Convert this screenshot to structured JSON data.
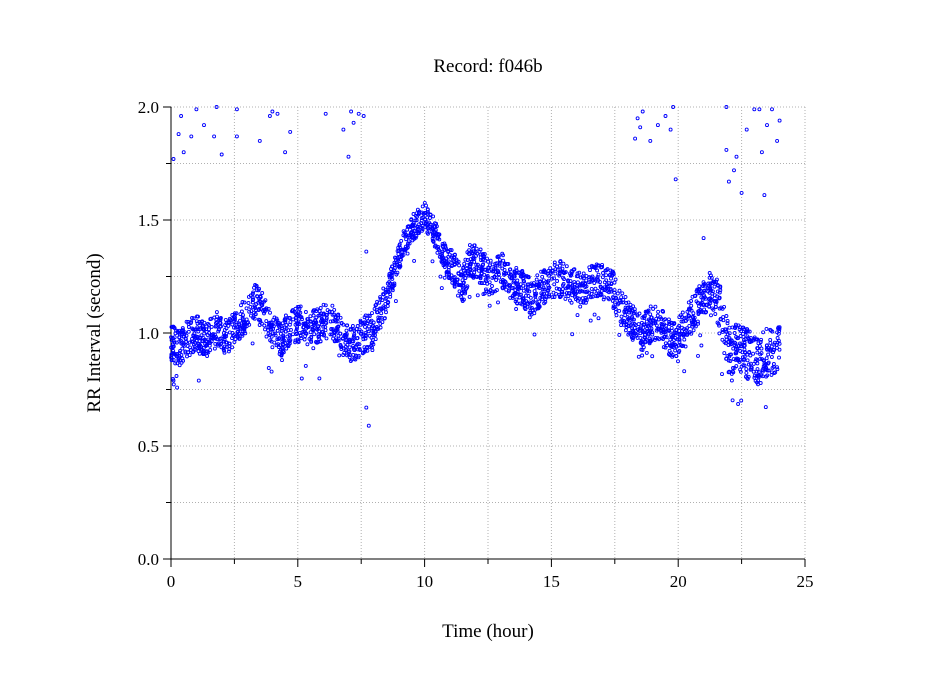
{
  "chart_data": {
    "type": "scatter",
    "title": "Record:  f046b",
    "xlabel": "Time (hour)",
    "ylabel": "RR Interval (second)",
    "xlim": [
      0,
      25
    ],
    "ylim": [
      0.0,
      2.0
    ],
    "x_ticks": [
      "0",
      "5",
      "10",
      "15",
      "20",
      "25"
    ],
    "y_ticks": [
      "0.0",
      "0.5",
      "1.0",
      "1.5",
      "2.0"
    ],
    "grid": true,
    "legend": "none",
    "marker": "open-circle",
    "color": "#0000ff",
    "trend": [
      [
        0.0,
        0.96
      ],
      [
        0.3,
        0.93
      ],
      [
        0.6,
        0.97
      ],
      [
        1.0,
        1.0
      ],
      [
        1.4,
        0.96
      ],
      [
        1.8,
        1.02
      ],
      [
        2.2,
        0.98
      ],
      [
        2.6,
        1.03
      ],
      [
        3.0,
        1.08
      ],
      [
        3.3,
        1.14
      ],
      [
        3.6,
        1.1
      ],
      [
        3.9,
        1.02
      ],
      [
        4.3,
        0.97
      ],
      [
        4.7,
        1.03
      ],
      [
        5.1,
        1.04
      ],
      [
        5.5,
        1.02
      ],
      [
        5.9,
        1.04
      ],
      [
        6.3,
        1.06
      ],
      [
        6.7,
        0.99
      ],
      [
        7.0,
        0.95
      ],
      [
        7.3,
        0.96
      ],
      [
        7.7,
        1.0
      ],
      [
        8.0,
        1.03
      ],
      [
        8.3,
        1.1
      ],
      [
        8.6,
        1.2
      ],
      [
        8.9,
        1.3
      ],
      [
        9.2,
        1.4
      ],
      [
        9.5,
        1.46
      ],
      [
        9.8,
        1.5
      ],
      [
        10.0,
        1.52
      ],
      [
        10.3,
        1.47
      ],
      [
        10.6,
        1.38
      ],
      [
        10.9,
        1.31
      ],
      [
        11.2,
        1.27
      ],
      [
        11.5,
        1.2
      ],
      [
        11.8,
        1.33
      ],
      [
        12.2,
        1.3
      ],
      [
        12.6,
        1.24
      ],
      [
        13.0,
        1.28
      ],
      [
        13.4,
        1.22
      ],
      [
        13.8,
        1.2
      ],
      [
        14.2,
        1.16
      ],
      [
        14.6,
        1.2
      ],
      [
        15.0,
        1.23
      ],
      [
        15.4,
        1.24
      ],
      [
        15.8,
        1.21
      ],
      [
        16.2,
        1.19
      ],
      [
        16.6,
        1.22
      ],
      [
        17.0,
        1.23
      ],
      [
        17.4,
        1.2
      ],
      [
        17.8,
        1.1
      ],
      [
        18.2,
        1.05
      ],
      [
        18.6,
        1.0
      ],
      [
        19.0,
        1.05
      ],
      [
        19.4,
        1.02
      ],
      [
        19.8,
        0.96
      ],
      [
        20.1,
        1.0
      ],
      [
        20.5,
        1.07
      ],
      [
        20.9,
        1.14
      ],
      [
        21.3,
        1.2
      ],
      [
        21.7,
        1.1
      ],
      [
        22.0,
        0.92
      ],
      [
        22.4,
        0.94
      ],
      [
        22.8,
        0.9
      ],
      [
        23.2,
        0.88
      ],
      [
        23.6,
        0.92
      ],
      [
        24.0,
        0.94
      ]
    ],
    "outliers": [
      [
        0.1,
        1.77
      ],
      [
        0.3,
        1.88
      ],
      [
        0.4,
        1.96
      ],
      [
        0.5,
        1.8
      ],
      [
        0.8,
        1.87
      ],
      [
        1.0,
        1.99
      ],
      [
        1.3,
        1.92
      ],
      [
        1.7,
        1.87
      ],
      [
        1.8,
        2.0
      ],
      [
        2.0,
        1.79
      ],
      [
        2.6,
        1.99
      ],
      [
        2.6,
        1.87
      ],
      [
        3.5,
        1.85
      ],
      [
        3.9,
        1.96
      ],
      [
        4.0,
        1.98
      ],
      [
        4.2,
        1.97
      ],
      [
        4.5,
        1.8
      ],
      [
        4.7,
        1.89
      ],
      [
        6.1,
        1.97
      ],
      [
        6.8,
        1.9
      ],
      [
        7.0,
        1.78
      ],
      [
        7.1,
        1.98
      ],
      [
        7.2,
        1.93
      ],
      [
        7.4,
        1.97
      ],
      [
        7.6,
        1.96
      ],
      [
        7.7,
        1.36
      ],
      [
        7.7,
        0.67
      ],
      [
        7.8,
        0.59
      ],
      [
        18.3,
        1.86
      ],
      [
        18.4,
        1.95
      ],
      [
        18.5,
        1.91
      ],
      [
        18.6,
        1.98
      ],
      [
        18.9,
        1.85
      ],
      [
        19.2,
        1.92
      ],
      [
        19.5,
        1.96
      ],
      [
        19.7,
        1.9
      ],
      [
        19.8,
        2.0
      ],
      [
        19.9,
        1.68
      ],
      [
        21.0,
        1.42
      ],
      [
        21.9,
        2.0
      ],
      [
        21.9,
        1.81
      ],
      [
        22.0,
        1.67
      ],
      [
        22.2,
        1.72
      ],
      [
        22.3,
        1.78
      ],
      [
        22.5,
        1.62
      ],
      [
        22.7,
        1.9
      ],
      [
        23.0,
        1.99
      ],
      [
        23.2,
        1.99
      ],
      [
        23.3,
        1.8
      ],
      [
        23.4,
        1.61
      ],
      [
        23.5,
        1.92
      ],
      [
        23.7,
        1.99
      ],
      [
        23.9,
        1.85
      ],
      [
        24.0,
        1.94
      ]
    ]
  }
}
